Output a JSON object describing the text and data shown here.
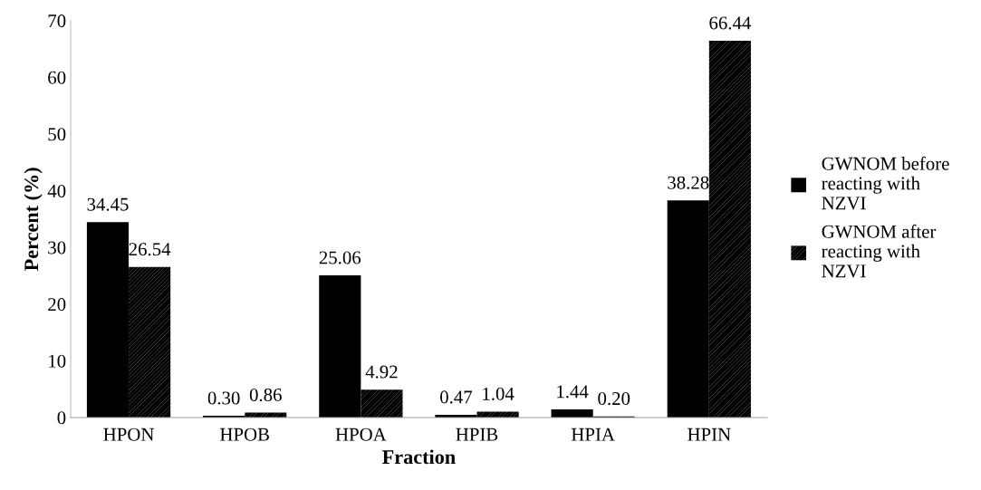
{
  "chart_data": {
    "type": "bar",
    "xlabel": "Fraction",
    "ylabel": "Percent (%)",
    "categories": [
      "HPON",
      "HPOB",
      "HPOA",
      "HPIB",
      "HPIA",
      "HPIN"
    ],
    "series": [
      {
        "name": "GWNOM before\nreacting with\nNZVI",
        "color": "#000000",
        "values": [
          34.45,
          0.3,
          25.06,
          0.47,
          1.44,
          38.28
        ],
        "value_labels": [
          "34.45",
          "0.30",
          "25.06",
          "0.47",
          "1.44",
          "38.28"
        ]
      },
      {
        "name": "GWNOM after\nreacting with\nNZVI",
        "color": "#000000",
        "values": [
          26.54,
          0.86,
          4.92,
          1.04,
          0.2,
          66.44
        ],
        "value_labels": [
          "26.54",
          "0.86",
          "4.92",
          "1.04",
          "0.20",
          "66.44"
        ]
      }
    ],
    "ylim": [
      0,
      70
    ],
    "yticks": [
      0,
      10,
      20,
      30,
      40,
      50,
      60,
      70
    ],
    "grid": false,
    "legend": "right"
  }
}
